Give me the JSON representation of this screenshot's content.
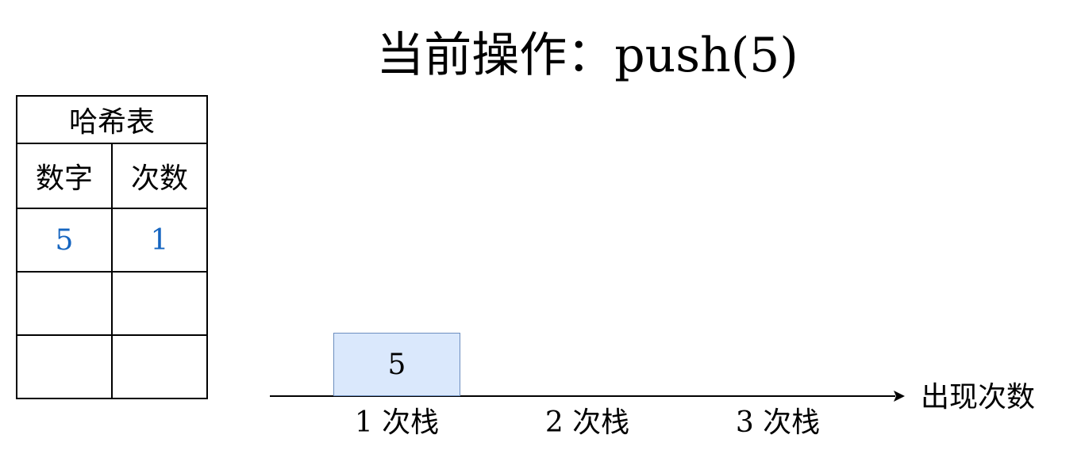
{
  "title": {
    "prefix": "当前操作：",
    "operation": "push(5)"
  },
  "hash_table": {
    "caption": "哈希表",
    "columns": [
      "数字",
      "次数"
    ],
    "rows": [
      [
        "5",
        "1"
      ],
      [
        "",
        ""
      ],
      [
        "",
        ""
      ]
    ]
  },
  "stacks": {
    "items": [
      {
        "num": "1",
        "label": "次栈",
        "values": [
          "5"
        ]
      },
      {
        "num": "2",
        "label": "次栈",
        "values": []
      },
      {
        "num": "3",
        "label": "次栈",
        "values": []
      }
    ]
  },
  "axis": {
    "label": "出现次数"
  }
}
